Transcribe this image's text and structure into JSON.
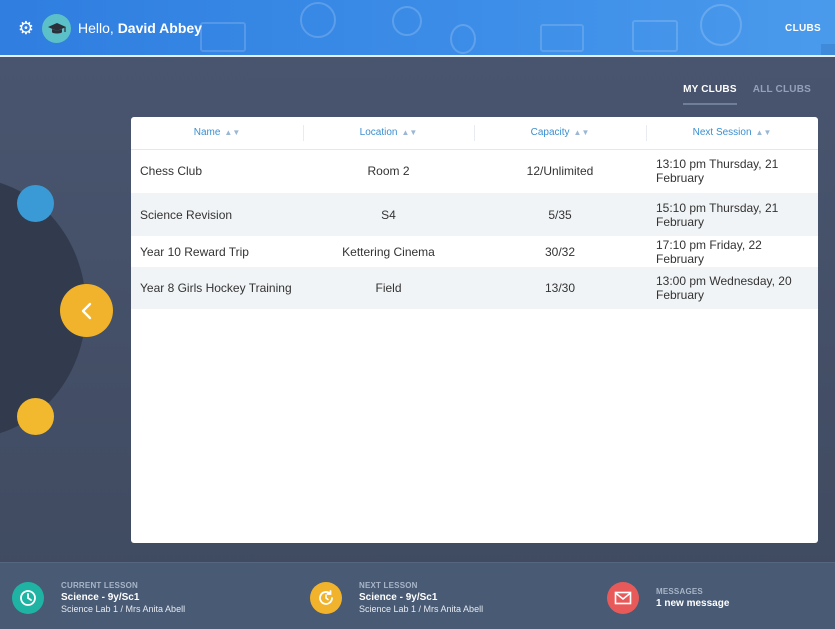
{
  "header": {
    "greeting_prefix": "Hello, ",
    "user_name": "David Abbey",
    "clubs_link": "CLUBS"
  },
  "tabs": [
    {
      "label": "MY CLUBS",
      "active": true
    },
    {
      "label": "ALL CLUBS",
      "active": false
    }
  ],
  "table": {
    "columns": [
      "Name",
      "Location",
      "Capacity",
      "Next Session"
    ],
    "rows": [
      {
        "name": "Chess Club",
        "location": "Room 2",
        "capacity": "12/Unlimited",
        "next_session": "13:10 pm Thursday, 21 February"
      },
      {
        "name": "Science Revision",
        "location": "S4",
        "capacity": "5/35",
        "next_session": "15:10 pm Thursday, 21 February"
      },
      {
        "name": "Year 10 Reward Trip",
        "location": "Kettering Cinema",
        "capacity": "30/32",
        "next_session": "17:10 pm Friday, 22 February"
      },
      {
        "name": "Year 8 Girls Hockey Training",
        "location": "Field",
        "capacity": "13/30",
        "next_session": "13:00 pm Wednesday, 20 February"
      }
    ]
  },
  "footer": {
    "current_lesson": {
      "label": "CURRENT LESSON",
      "title": "Science - 9y/Sc1",
      "sub": "Science Lab 1 / Mrs Anita Abell",
      "icon": "clock-icon",
      "color": "#1fb3a3"
    },
    "next_lesson": {
      "label": "NEXT LESSON",
      "title": "Science - 9y/Sc1",
      "sub": "Science Lab 1 / Mrs Anita Abell",
      "icon": "clock-forward-icon",
      "color": "#f0b32b"
    },
    "messages": {
      "label": "MESSAGES",
      "title": "1 new message",
      "icon": "envelope-icon",
      "color": "#e85a5a"
    }
  },
  "colors": {
    "header_blue": "#3d8ee8",
    "accent_yellow": "#f0b32b",
    "accent_blue": "#3a9ad6",
    "link_blue": "#3a8fd0"
  }
}
